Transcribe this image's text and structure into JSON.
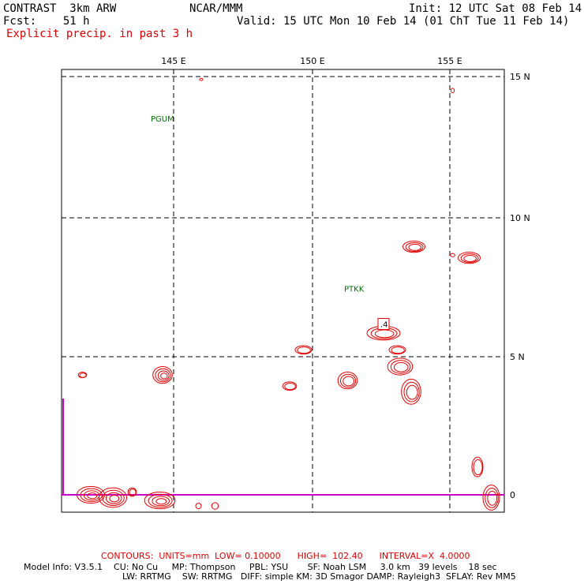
{
  "header": {
    "model": "CONTRAST  3km ARW",
    "fcst": "Fcst:    51 h",
    "org": "NCAR/MMM",
    "init": "Init: 12 UTC Sat 08 Feb 14",
    "valid": "Valid: 15 UTC Mon 10 Feb 14 (01 ChT Tue 11 Feb 14)",
    "field": "Explicit precip. in past 3 h"
  },
  "footer": {
    "contours": "CONTOURS:  UNITS=mm  LOW= 0.10000      HIGH=  102.40      INTERVAL=X  4.0000",
    "model_info_1": "Model Info: V3.5.1    CU: No Cu     MP: Thompson     PBL: YSU       SF: Noah LSM     3.0 km   39 levels    18 sec",
    "model_info_2": "LW: RRTMG    SW: RRTMG   DIFF: simple KM: 3D Smagor DAMP: Rayleigh3  SFLAY: Rev MM5"
  },
  "colors": {
    "contour": "#e00000",
    "station": "#007000",
    "coastline": "#cc00cc",
    "grid": "#000000"
  },
  "chart_data": {
    "type": "map",
    "x_axis": {
      "label": "",
      "ticks": [
        "145 E",
        "150 E",
        "155 E"
      ],
      "range": [
        141,
        157.5
      ]
    },
    "y_axis": {
      "label": "",
      "ticks": [
        "15 N",
        "10 N",
        "5 N",
        "0"
      ],
      "range": [
        -0.6,
        15.2
      ]
    },
    "grid": "dashed",
    "stations": [
      {
        "id": "PGUM",
        "lon": 144.8,
        "lat": 13.5
      },
      {
        "id": "PTKK",
        "lon": 151.8,
        "lat": 7.4
      }
    ],
    "high_label": {
      "text": ".4",
      "lon": 152.6,
      "lat": 6.1
    },
    "precip_cells": [
      {
        "lon": 141.7,
        "lat": 4.3,
        "rx": 0.15,
        "ry": 0.1,
        "rings": 2
      },
      {
        "lon": 144.6,
        "lat": 4.3,
        "rx": 0.35,
        "ry": 0.3,
        "rings": 4
      },
      {
        "lon": 149.7,
        "lat": 5.2,
        "rx": 0.3,
        "ry": 0.15,
        "rings": 2
      },
      {
        "lon": 149.2,
        "lat": 3.9,
        "rx": 0.25,
        "ry": 0.15,
        "rings": 2
      },
      {
        "lon": 151.3,
        "lat": 4.1,
        "rx": 0.35,
        "ry": 0.3,
        "rings": 3
      },
      {
        "lon": 152.6,
        "lat": 5.8,
        "rx": 0.6,
        "ry": 0.25,
        "rings": 3
      },
      {
        "lon": 153.1,
        "lat": 5.2,
        "rx": 0.3,
        "ry": 0.15,
        "rings": 2
      },
      {
        "lon": 153.2,
        "lat": 4.6,
        "rx": 0.45,
        "ry": 0.3,
        "rings": 3
      },
      {
        "lon": 153.6,
        "lat": 3.7,
        "rx": 0.35,
        "ry": 0.45,
        "rings": 3
      },
      {
        "lon": 153.7,
        "lat": 8.9,
        "rx": 0.4,
        "ry": 0.2,
        "rings": 3
      },
      {
        "lon": 155.7,
        "lat": 8.5,
        "rx": 0.4,
        "ry": 0.2,
        "rings": 3
      },
      {
        "lon": 155.1,
        "lat": 8.6,
        "rx": 0.08,
        "ry": 0.06,
        "rings": 1
      },
      {
        "lon": 155.1,
        "lat": 14.5,
        "rx": 0.06,
        "ry": 0.08,
        "rings": 1
      },
      {
        "lon": 156.0,
        "lat": 1.0,
        "rx": 0.2,
        "ry": 0.35,
        "rings": 2
      },
      {
        "lon": 156.5,
        "lat": -0.1,
        "rx": 0.3,
        "ry": 0.45,
        "rings": 3
      },
      {
        "lon": 142.0,
        "lat": 0.0,
        "rx": 0.5,
        "ry": 0.3,
        "rings": 4
      },
      {
        "lon": 142.8,
        "lat": -0.1,
        "rx": 0.5,
        "ry": 0.35,
        "rings": 4
      },
      {
        "lon": 143.5,
        "lat": 0.1,
        "rx": 0.15,
        "ry": 0.15,
        "rings": 2
      },
      {
        "lon": 144.5,
        "lat": -0.2,
        "rx": 0.55,
        "ry": 0.3,
        "rings": 4
      },
      {
        "lon": 145.9,
        "lat": -0.4,
        "rx": 0.1,
        "ry": 0.1,
        "rings": 1
      },
      {
        "lon": 146.5,
        "lat": -0.4,
        "rx": 0.12,
        "ry": 0.12,
        "rings": 1
      },
      {
        "lon": 146.0,
        "lat": 14.9,
        "rx": 0.06,
        "ry": 0.04,
        "rings": 1
      }
    ]
  }
}
